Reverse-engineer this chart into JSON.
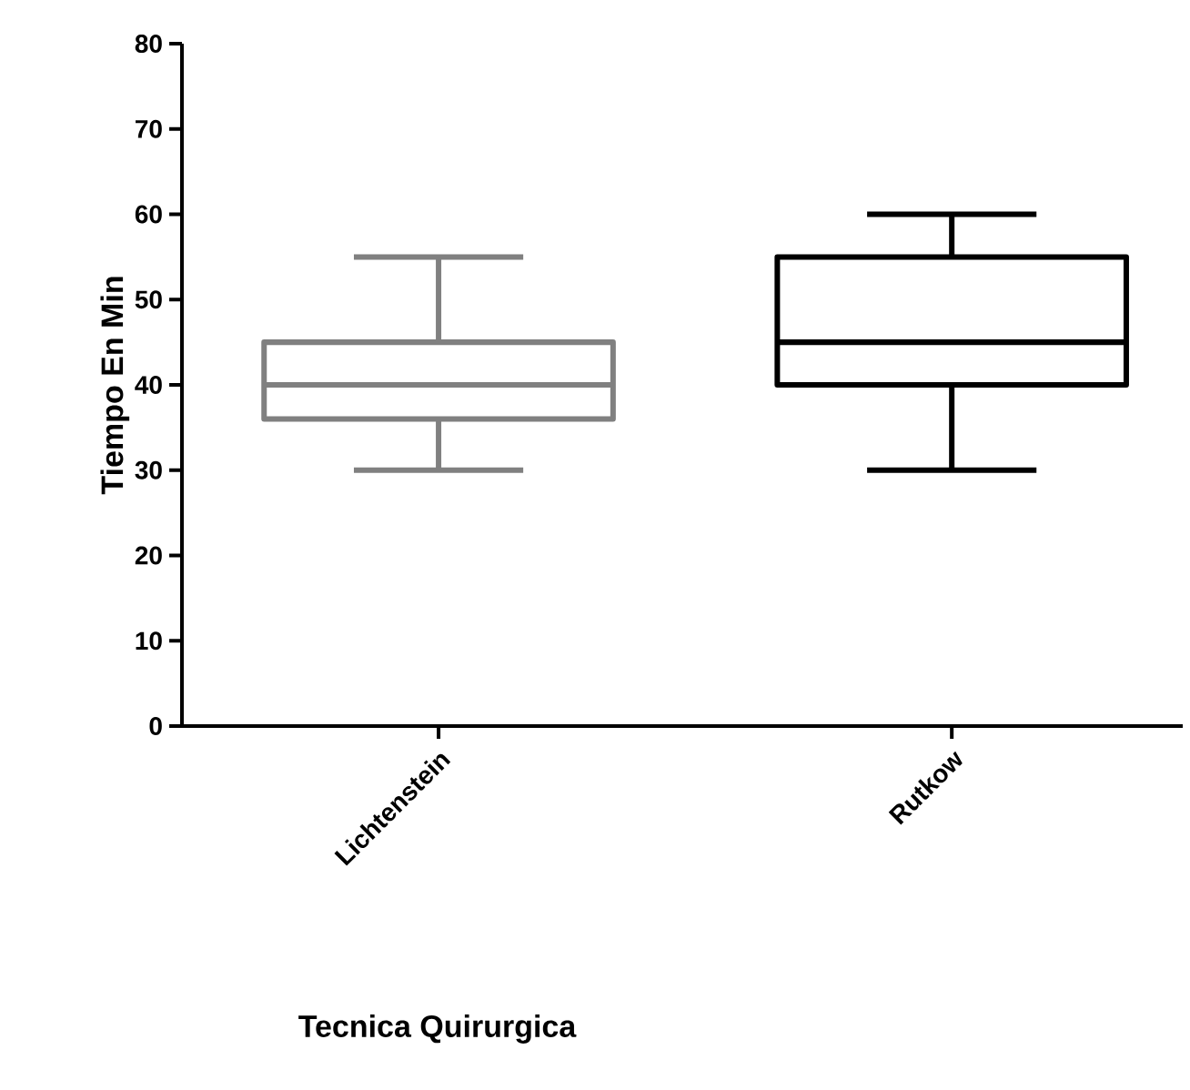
{
  "chart_data": {
    "type": "box",
    "categories": [
      "Lichtenstein",
      "Rutkow"
    ],
    "xlabel": "Tecnica Quirurgica",
    "ylabel": "Tiempo En Min",
    "ylim": [
      0,
      80
    ],
    "yticks": [
      0,
      10,
      20,
      30,
      40,
      50,
      60,
      70,
      80
    ],
    "colors": [
      "#808080",
      "#000000"
    ],
    "boxes": [
      {
        "low": 30,
        "q1": 36,
        "median": 40,
        "q3": 45,
        "high": 55
      },
      {
        "low": 30,
        "q1": 40,
        "median": 45,
        "q3": 55,
        "high": 60
      }
    ]
  }
}
